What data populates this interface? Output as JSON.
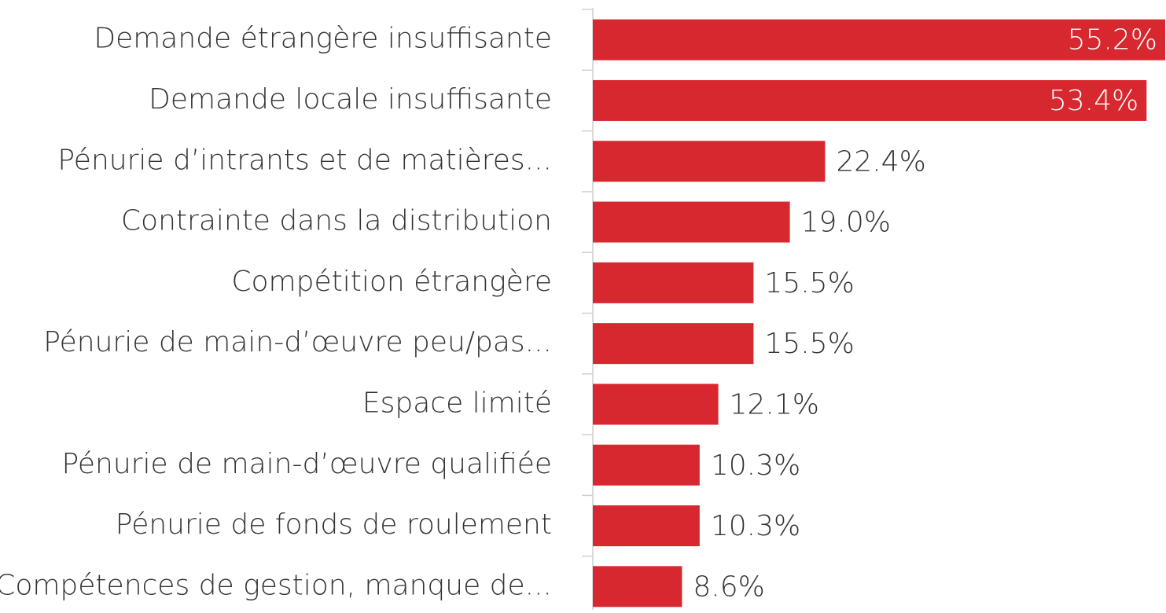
{
  "chart_data": {
    "type": "bar",
    "orientation": "horizontal",
    "categories": [
      "Demande étrangère insuffisante",
      "Demande locale insuffisante",
      "Pénurie d’intrants et de matières...",
      "Contrainte dans la distribution",
      "Compétition étrangère",
      "Pénurie de main-d’œuvre peu/pas...",
      "Espace limité",
      "Pénurie de main-d’œuvre qualifiée",
      "Pénurie de fonds de roulement",
      "Compétences de gestion, manque de..."
    ],
    "values": [
      55.2,
      53.4,
      22.4,
      19.0,
      15.5,
      15.5,
      12.1,
      10.3,
      10.3,
      8.6
    ],
    "value_labels": [
      "55.2%",
      "53.4%",
      "22.4%",
      "19.0%",
      "15.5%",
      "15.5%",
      "12.1%",
      "10.3%",
      "10.3%",
      "8.6%"
    ],
    "color": "#d7282f",
    "xlim": [
      0,
      55.2
    ]
  }
}
